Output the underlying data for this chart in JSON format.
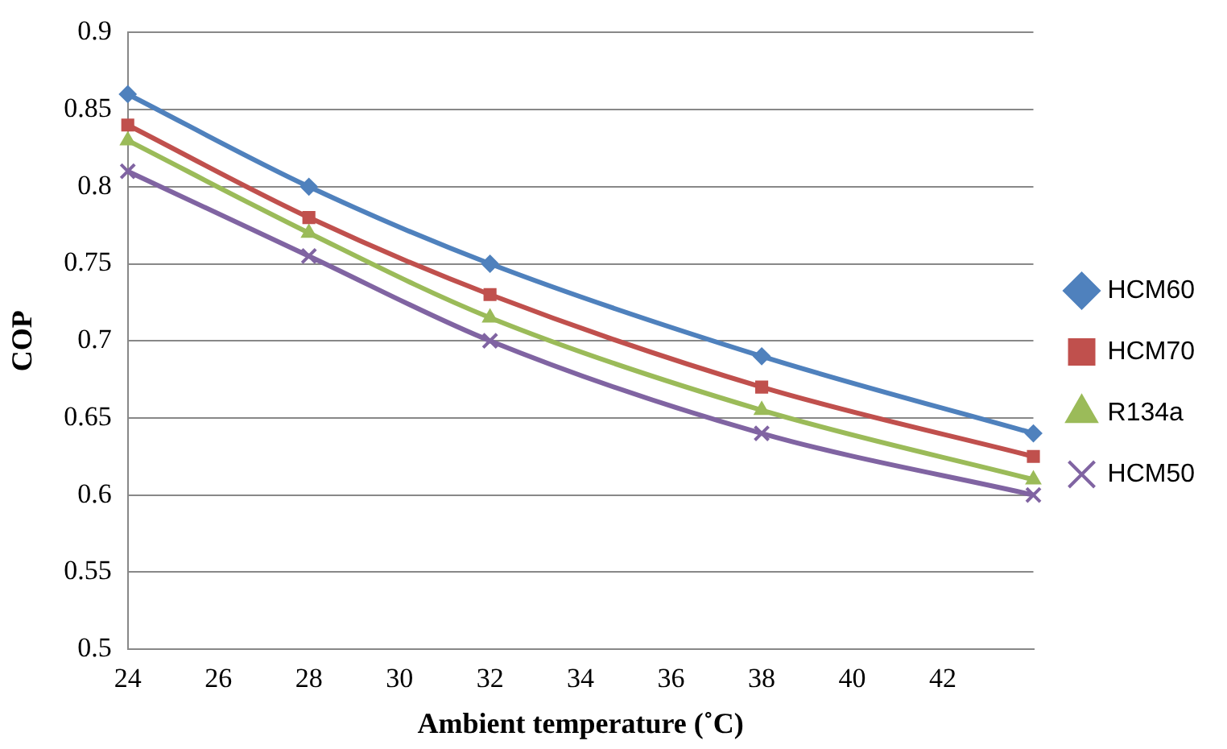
{
  "chart_data": {
    "type": "line",
    "xlabel": "Ambient temperature (˚C)",
    "ylabel": "COP",
    "x": [
      24,
      28,
      32,
      38,
      44
    ],
    "xlim": [
      24,
      44
    ],
    "xticks": [
      24,
      26,
      28,
      30,
      32,
      34,
      36,
      38,
      40,
      42
    ],
    "ylim": [
      0.5,
      0.9
    ],
    "yticks": [
      0.5,
      0.55,
      0.6,
      0.65,
      0.7,
      0.75,
      0.8,
      0.85,
      0.9
    ],
    "grid": "y",
    "legend": "right",
    "series": [
      {
        "name": "HCM60",
        "color": "#4f81bd",
        "marker": "diamond",
        "values": [
          0.86,
          0.8,
          0.75,
          0.69,
          0.64
        ]
      },
      {
        "name": "HCM70",
        "color": "#c0504d",
        "marker": "square",
        "values": [
          0.84,
          0.78,
          0.73,
          0.67,
          0.625
        ]
      },
      {
        "name": "R134a",
        "color": "#9bbb59",
        "marker": "triangle",
        "values": [
          0.83,
          0.77,
          0.715,
          0.655,
          0.61
        ]
      },
      {
        "name": "HCM50",
        "color": "#8064a2",
        "marker": "cross",
        "values": [
          0.81,
          0.755,
          0.7,
          0.64,
          0.6
        ]
      }
    ]
  }
}
